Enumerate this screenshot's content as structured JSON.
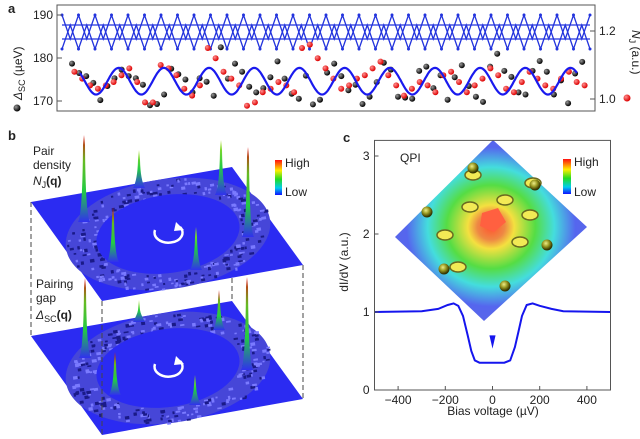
{
  "panel_labels": {
    "a": "a",
    "b": "b",
    "c": "c"
  },
  "colors": {
    "lattice": "#2233dd",
    "fit": "#1a1aee",
    "black_points": "#111111",
    "red_points": "#ee2222",
    "plane": "#2b2bf2",
    "curve": "#1515ee"
  },
  "chart_data": [
    {
      "panel": "a",
      "type": "scatter",
      "ylabel_left": "Δ",
      "ylabel_left_sub": "SC",
      "ylabel_left_unit": " (µeV)",
      "ylabel_right": "N",
      "ylabel_right_sub": "J",
      "ylabel_right_unit": " (a.u.)",
      "ylim_left": [
        168,
        192
      ],
      "yticks_left": [
        "170",
        "180",
        "190"
      ],
      "ylim_right": [
        0.95,
        1.25
      ],
      "yticks_right": [
        "1.0",
        "1.2"
      ],
      "fit": {
        "mean": 174.6,
        "amplitude": 3.1,
        "periods": 11
      },
      "series": [
        {
          "axis": "left",
          "color": "black",
          "values": [
            178.7,
            176.5,
            175.8,
            174.2,
            170.2,
            173.5,
            175.3,
            177.3,
            175.8,
            175.3,
            173.8,
            169,
            169.3,
            171.5,
            177.5,
            176.2,
            175,
            172,
            175.3,
            174.5,
            171.2,
            182.5,
            175.2,
            178.7,
            176.8,
            173.3,
            172,
            173,
            175.5,
            179.2,
            175.2,
            171.7,
            170.5,
            175.9,
            169.2,
            170.3,
            176.6,
            178.7,
            175.8,
            172.5,
            173.8,
            169.3,
            171,
            174.4,
            178.9,
            177.3,
            171,
            170.8,
            170.5,
            177,
            178,
            173,
            176,
            170.3,
            175.5,
            178.3,
            173.5,
            171,
            169.8,
            178,
            181,
            177,
            175.6,
            172,
            171.5,
            177,
            179.3,
            176.8,
            171.5,
            174.8,
            169.5,
            176.4,
            179.1
          ]
        },
        {
          "axis": "right",
          "color": "red",
          "values": [
            1.08,
            1.06,
            1.04,
            1.03,
            1.04,
            1.05,
            1.07,
            1.09,
            1.05,
            0.99,
            0.99,
            1.1,
            1.09,
            1.07,
            1.03,
            1.01,
            1.04,
            1.15,
            1.12,
            1.08,
            1.06,
            1.04,
            0.98,
            0.99,
            1.02,
            1.03,
            1.05,
            1.04,
            1.02,
            1.15,
            1.16,
            1.12,
            1.09,
            1.06,
            1.03,
            1.04,
            1.06,
            1.07,
            1.09,
            1.11,
            1.07,
            1.04,
            1.01,
            1.03,
            1.05,
            1.04,
            1.02,
            1.07,
            1.08,
            1.05,
            1.02,
            1.04,
            1.06,
            1.09,
            1.07,
            1.03,
            1.02,
            1.05,
            1.08,
            1.06,
            1.04,
            1.03,
            1.06,
            1.08,
            1.05,
            1.04
          ]
        }
      ]
    },
    {
      "panel": "c",
      "type": "line",
      "xlabel": "Bias voltage (µV)",
      "ylabel": "dI/dV (a.u.)",
      "xlim": [
        -500,
        500
      ],
      "ylim": [
        0,
        3.2
      ],
      "xticks": [
        "-400",
        "-200",
        "0",
        "200",
        "400"
      ],
      "yticks": [
        "0",
        "1",
        "2",
        "3"
      ],
      "x": [
        -500,
        -300,
        -230,
        -190,
        -165,
        -145,
        -125,
        -105,
        -90,
        -75,
        -55,
        0,
        50,
        75,
        95,
        110,
        125,
        145,
        170,
        200,
        250,
        300,
        500
      ],
      "y": [
        1.0,
        1.01,
        1.04,
        1.09,
        1.11,
        1.08,
        0.95,
        0.7,
        0.5,
        0.38,
        0.35,
        0.35,
        0.35,
        0.38,
        0.55,
        0.75,
        0.95,
        1.09,
        1.11,
        1.08,
        1.04,
        1.01,
        1.0
      ],
      "inset_title": "QPI",
      "colorbar": {
        "high": "High",
        "low": "Low"
      }
    }
  ],
  "panel_b": {
    "top_label": [
      "Pair",
      "density"
    ],
    "top_symbol": "N",
    "top_sub": "J",
    "top_arg": "(q)",
    "bottom_label": [
      "Pairing",
      "gap"
    ],
    "bottom_symbol": "Δ",
    "bottom_sub": "SC",
    "bottom_arg": "(q)",
    "colorbar": {
      "high": "High",
      "low": "Low"
    }
  }
}
